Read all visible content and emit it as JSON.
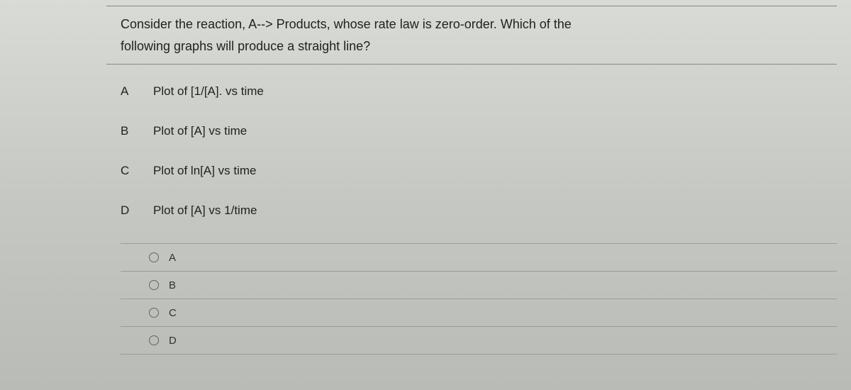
{
  "question": {
    "line1": "Consider the reaction, A--> Products,  whose rate law is zero-order.   Which of the",
    "line2": "following graphs will produce a straight line?"
  },
  "options": [
    {
      "letter": "A",
      "text": "Plot of [1/[A]. vs time"
    },
    {
      "letter": "B",
      "text": "Plot of [A] vs time"
    },
    {
      "letter": "C",
      "text": "Plot of ln[A] vs time"
    },
    {
      "letter": "D",
      "text": "Plot of [A] vs 1/time"
    }
  ],
  "answers": [
    {
      "label": "A"
    },
    {
      "label": "B"
    },
    {
      "label": "C"
    },
    {
      "label": "D"
    }
  ]
}
